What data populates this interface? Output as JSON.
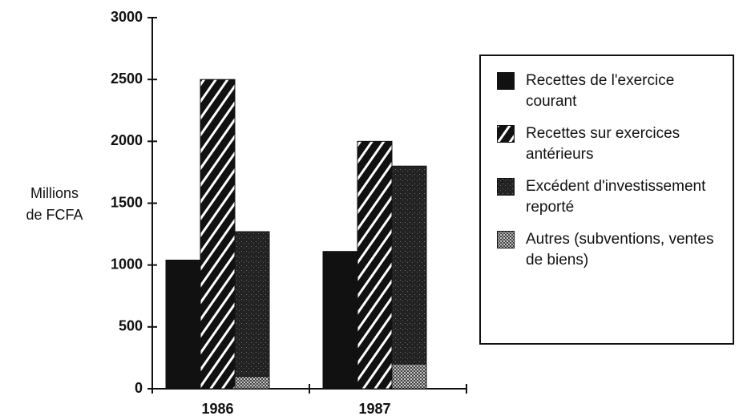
{
  "chart_data": {
    "type": "bar",
    "y_label": "Millions de FCFA",
    "categories": [
      "1986",
      "1987"
    ],
    "series": [
      {
        "name": "Recettes de l'exercice courant",
        "color": "#111111",
        "pattern": "solid",
        "slot": 0,
        "values": [
          1040,
          1110
        ]
      },
      {
        "name": "Recettes sur exercices antérieurs",
        "color": "#111111",
        "pattern": "hatch",
        "slot": 1,
        "values": [
          2500,
          2000
        ]
      },
      {
        "name": "Excédent d'investissement reporté",
        "color": "#222222",
        "pattern": "speckle",
        "slot": 2,
        "values": [
          1170,
          1600
        ]
      },
      {
        "name": "Autres (subventions, ventes de biens)",
        "color": "#888888",
        "pattern": "dots",
        "slot": 2,
        "values": [
          100,
          200
        ]
      }
    ],
    "stack_order": [
      3,
      2
    ],
    "ylim": [
      0,
      3000
    ],
    "yticks": [
      0,
      500,
      1000,
      1500,
      2000,
      2500,
      3000
    ]
  }
}
